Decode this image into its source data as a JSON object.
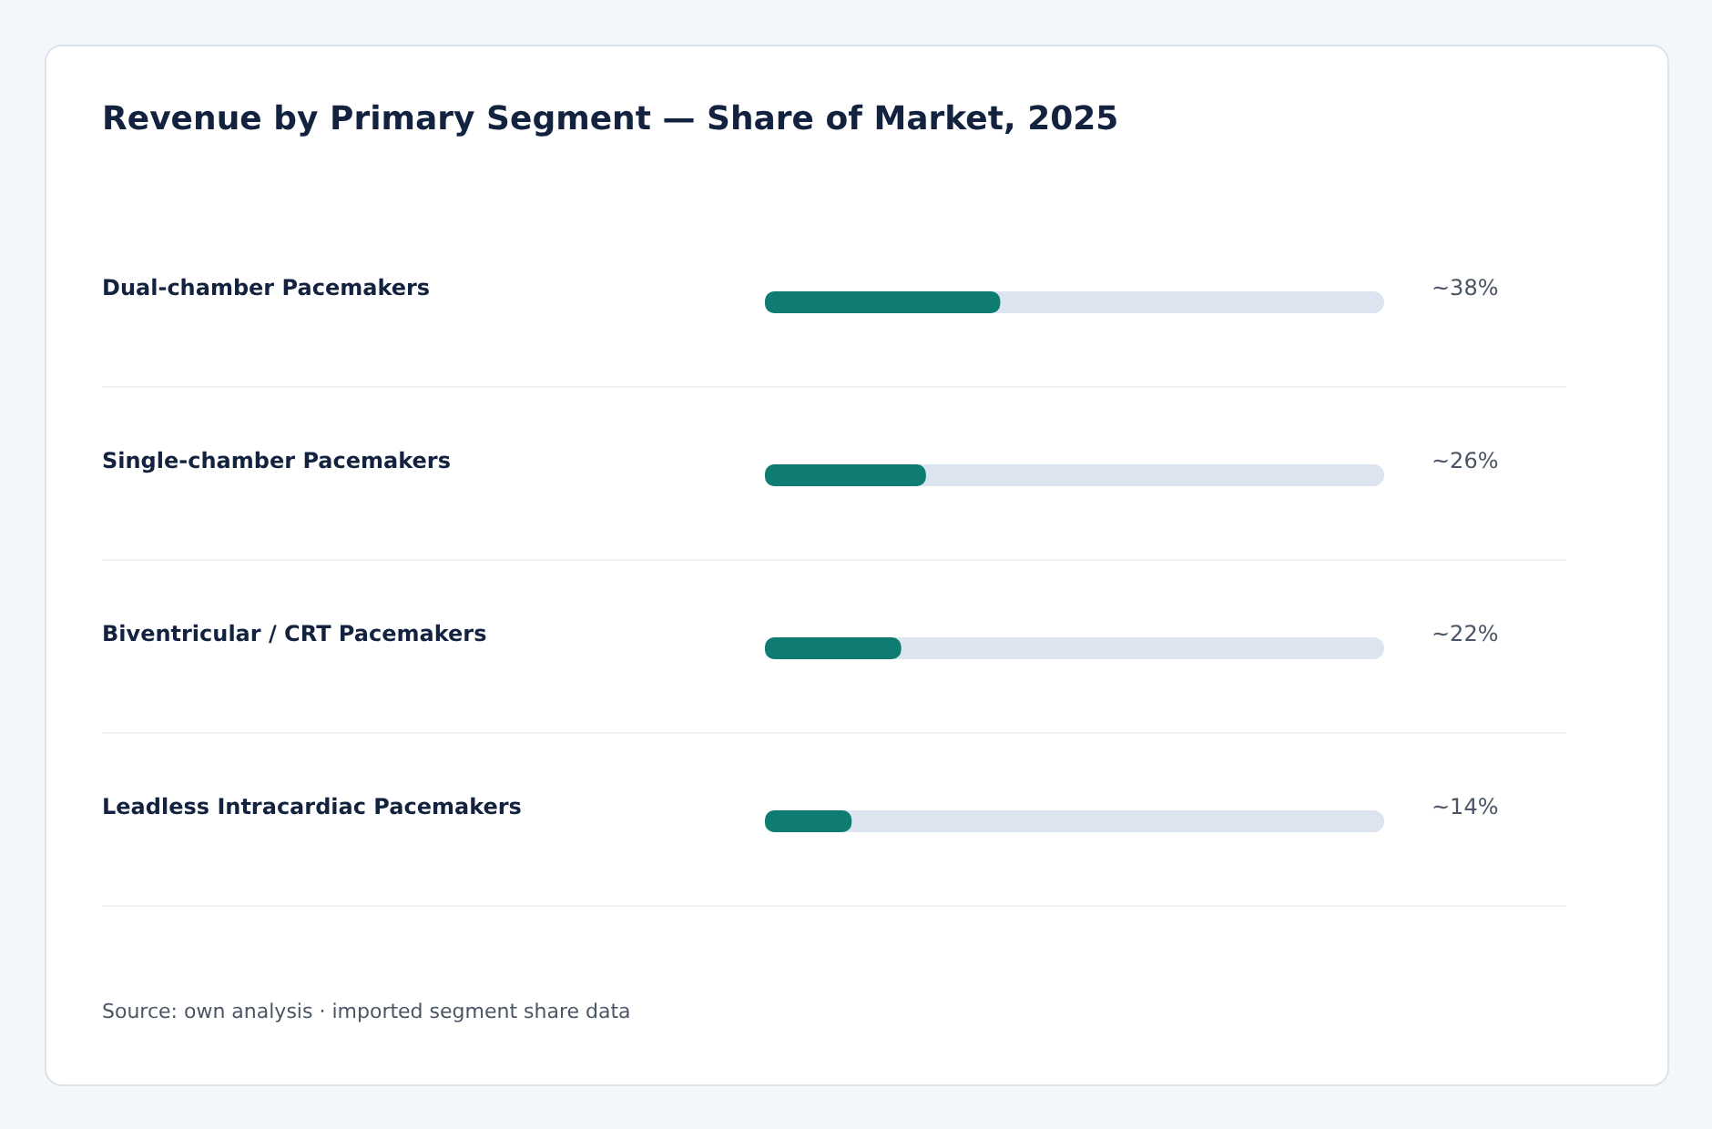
{
  "chart_data": {
    "type": "bar",
    "orientation": "horizontal",
    "title": "Revenue by Primary Segment — Share of Market, 2025",
    "categories": [
      "Dual-chamber Pacemakers",
      "Single-chamber Pacemakers",
      "Biventricular / CRT Pacemakers",
      "Leadless Intracardiac Pacemakers"
    ],
    "values": [
      38,
      26,
      22,
      14
    ],
    "value_labels": [
      "~38%",
      "~26%",
      "~22%",
      "~14%"
    ],
    "color": "#0e7c70",
    "xlim": [
      0,
      100
    ],
    "tick_labels": "y",
    "annotations": [
      "Source: own analysis · imported segment share data"
    ]
  }
}
